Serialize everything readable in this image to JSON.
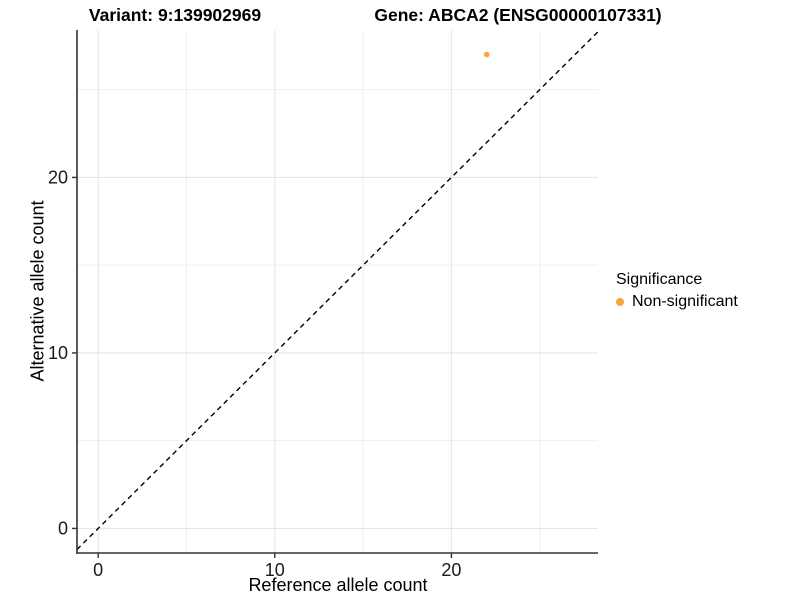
{
  "chart_data": {
    "type": "scatter",
    "title_left": "Variant: 9:139902969",
    "title_right": "Gene: ABCA2 (ENSG00000107331)",
    "xlabel": "Reference allele count",
    "ylabel": "Alternative allele count",
    "xlim": [
      -1.2,
      28.3
    ],
    "ylim": [
      -1.4,
      28.4
    ],
    "x_major_ticks": [
      0,
      10,
      20
    ],
    "y_major_ticks": [
      0,
      10,
      20
    ],
    "x_minor_gridlines": [
      5,
      15,
      25
    ],
    "y_minor_gridlines": [
      5,
      15,
      25
    ],
    "grid": true,
    "series": [
      {
        "name": "Non-significant",
        "color": "#F8A43D",
        "points": [
          {
            "x": 22,
            "y": 27
          }
        ]
      }
    ],
    "reference_line": {
      "type": "identity",
      "style": "dashed",
      "color": "#000000"
    },
    "legend": {
      "title": "Significance",
      "position": "right",
      "items": [
        {
          "label": "Non-significant",
          "color": "#F8A43D"
        }
      ]
    },
    "colors": {
      "gridline_major": "#E3E3E3",
      "gridline_minor": "#EFEFEF",
      "axis_line": "#333333",
      "tick_text": "#1a1a1a",
      "background": "#FFFFFF"
    }
  }
}
